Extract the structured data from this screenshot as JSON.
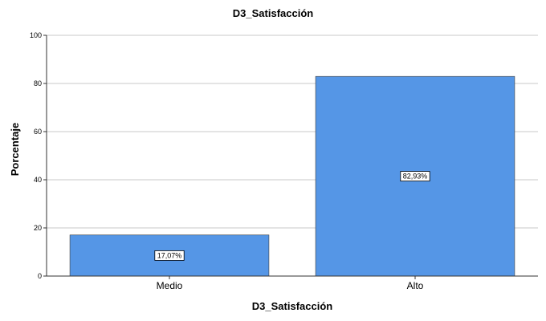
{
  "chart_data": {
    "type": "bar",
    "title": "D3_Satisfacción",
    "xlabel": "D3_Satisfacción",
    "ylabel": "Porcentaje",
    "categories": [
      "Medio",
      "Alto"
    ],
    "values": [
      17.07,
      82.93
    ],
    "data_labels": [
      "17,07%",
      "82,93%"
    ],
    "yticks": [
      0,
      20,
      40,
      60,
      80,
      100
    ],
    "ylim": [
      0,
      100
    ],
    "grid": true,
    "bar_color": "#5596E6"
  }
}
